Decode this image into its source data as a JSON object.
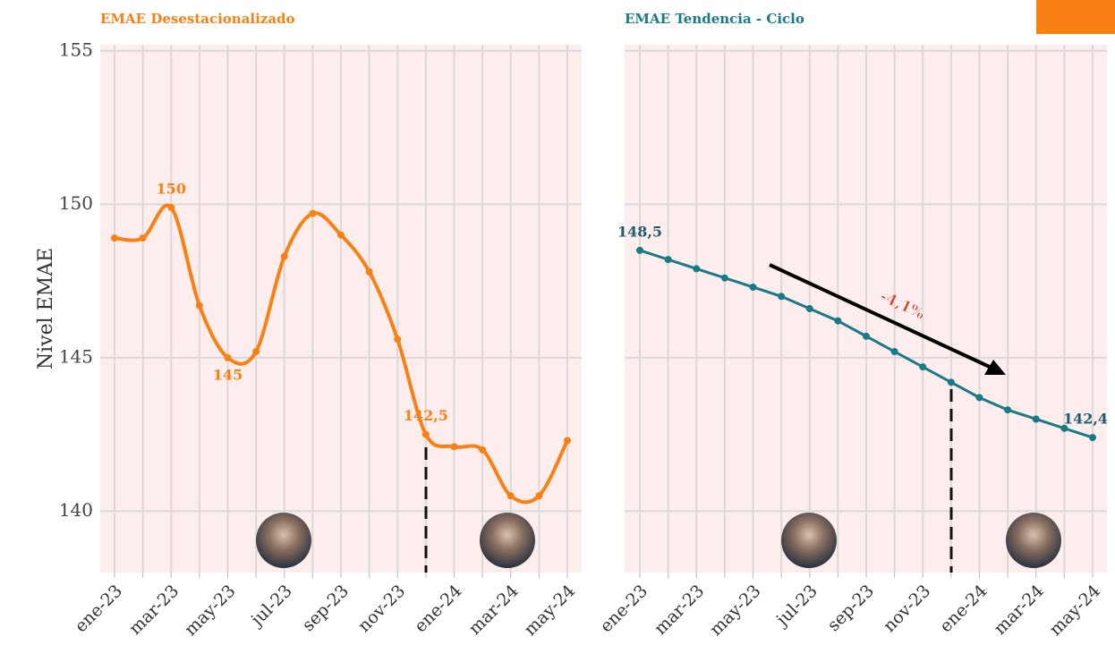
{
  "chart_data": [
    {
      "type": "line",
      "title": "EMAE Desestacionalizado",
      "y_label": "Nivel EMAE",
      "color": "#f98012",
      "categories": [
        "ene-23",
        null,
        "mar-23",
        null,
        "may-23",
        null,
        "jul-23",
        null,
        "sep-23",
        null,
        "nov-23",
        null,
        "ene-24",
        null,
        "mar-24",
        null,
        "may-24"
      ],
      "values": [
        148.9,
        148.9,
        149.9,
        146.7,
        145.0,
        145.2,
        148.3,
        149.7,
        149.0,
        147.8,
        145.6,
        142.5,
        142.1,
        142.0,
        140.5,
        140.5,
        142.3
      ],
      "value_labels": [
        null,
        null,
        "150",
        null,
        "145",
        null,
        null,
        null,
        null,
        null,
        null,
        "142,5",
        null,
        null,
        null,
        null,
        null
      ],
      "smooth": true,
      "ylim": [
        138,
        155.2
      ],
      "yticks": [
        140,
        145,
        150,
        155
      ],
      "grid": true
    },
    {
      "type": "line",
      "title": "EMAE Tendencia - Ciclo",
      "color": "#1a7a86",
      "label_color": "#1f5d6e",
      "categories": [
        "ene-23",
        null,
        "mar-23",
        null,
        "may-23",
        null,
        "jul-23",
        null,
        "sep-23",
        null,
        "nov-23",
        null,
        "ene-24",
        null,
        "mar-24",
        null,
        "may-24"
      ],
      "values": [
        148.5,
        148.2,
        147.9,
        147.6,
        147.3,
        147.0,
        146.6,
        146.2,
        145.7,
        145.2,
        144.7,
        144.2,
        143.7,
        143.3,
        143.0,
        142.7,
        142.4
      ],
      "value_labels": [
        "148,5",
        null,
        null,
        null,
        null,
        null,
        null,
        null,
        null,
        null,
        null,
        null,
        null,
        null,
        null,
        null,
        "142,4"
      ],
      "smooth": false,
      "ylim": [
        138,
        155.2
      ],
      "yticks": [
        140,
        145,
        150,
        155
      ],
      "grid": true,
      "annotation": "-4,1%"
    }
  ]
}
